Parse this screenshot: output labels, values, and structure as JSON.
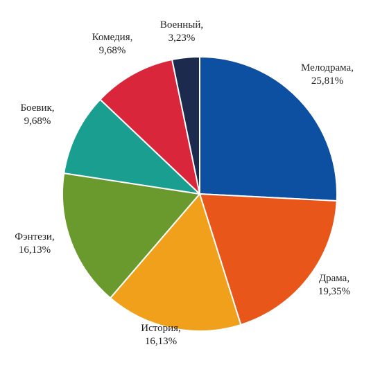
{
  "chart_data": {
    "type": "pie",
    "categories": [
      "Мелодрама,",
      "Драма,",
      "История,",
      "Фэнтези,",
      "Боевик,",
      "Комедия,",
      "Военный,"
    ],
    "values": [
      25.81,
      19.35,
      16.13,
      16.13,
      9.68,
      9.68,
      3.23
    ],
    "value_labels": [
      "25,81%",
      "19,35%",
      "16,13%",
      "16,13%",
      "9,68%",
      "9,68%",
      "3,23%"
    ],
    "colors": [
      "#0d4fa0",
      "#e8561a",
      "#f0a01a",
      "#6a9a2e",
      "#1a9e8f",
      "#d9263a",
      "#1c2a4e"
    ]
  }
}
